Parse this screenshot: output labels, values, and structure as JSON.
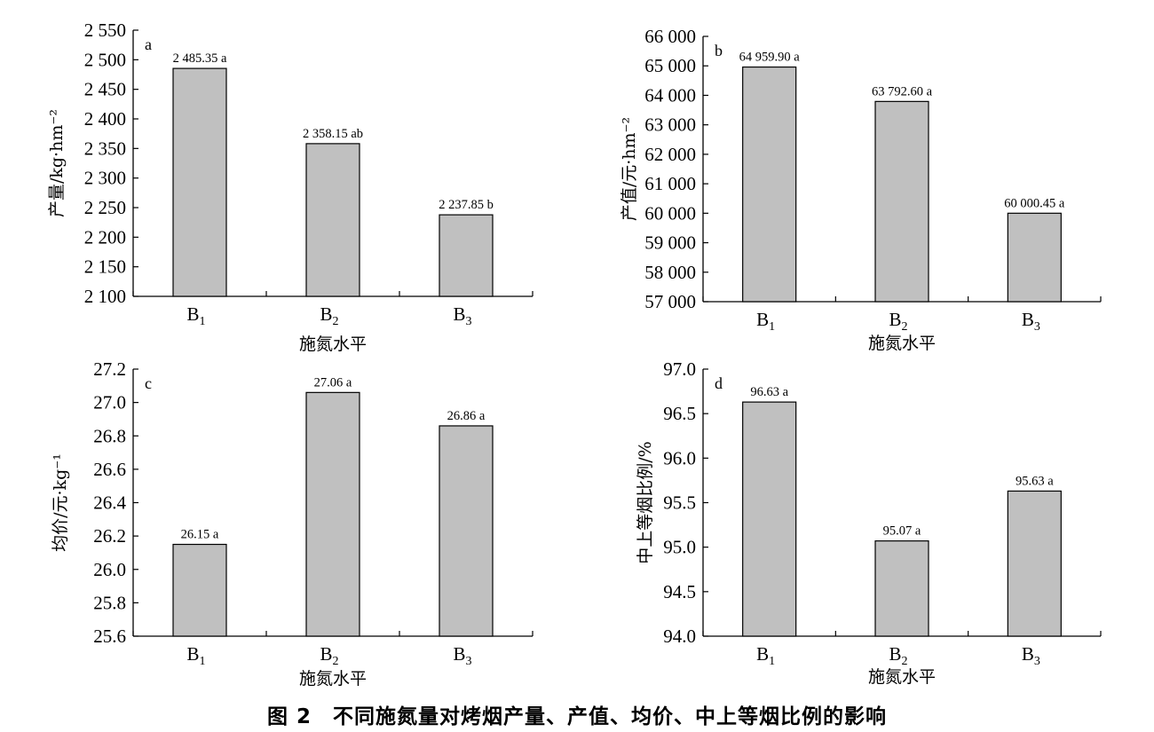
{
  "figure": {
    "caption": "图 2　不同施氮量对烤烟产量、产值、均价、中上等烟比例的影响"
  },
  "colors": {
    "bar_fill": "#c0c0c0",
    "bar_stroke": "#000000",
    "axis": "#000000"
  },
  "chart_data": [
    {
      "type": "bar",
      "panel_letter": "a",
      "categories": [
        "B1",
        "B2",
        "B3"
      ],
      "values": [
        2485.35,
        2358.15,
        2237.85
      ],
      "data_labels": [
        "2 485.35 a",
        "2 358.15 ab",
        "2 237.85 b"
      ],
      "xlabel": "施氮水平",
      "ylabel": "产量/kg·hm⁻²",
      "ylim": [
        2100,
        2550
      ],
      "yticks": [
        "2 100",
        "2 150",
        "2 200",
        "2 250",
        "2 300",
        "2 350",
        "2 400",
        "2 450",
        "2 500",
        "2 550"
      ],
      "grid": false
    },
    {
      "type": "bar",
      "panel_letter": "b",
      "categories": [
        "B1",
        "B2",
        "B3"
      ],
      "values": [
        64959.9,
        63792.6,
        60000.45
      ],
      "data_labels": [
        "64 959.90 a",
        "63 792.60 a",
        "60 000.45 a"
      ],
      "xlabel": "施氮水平",
      "ylabel": "产值/元·hm⁻²",
      "ylim": [
        57000,
        66000
      ],
      "yticks": [
        "57 000",
        "58 000",
        "59 000",
        "60 000",
        "61 000",
        "62 000",
        "63 000",
        "64 000",
        "65 000",
        "66 000"
      ],
      "grid": false
    },
    {
      "type": "bar",
      "panel_letter": "c",
      "categories": [
        "B1",
        "B2",
        "B3"
      ],
      "values": [
        26.15,
        27.06,
        26.86
      ],
      "data_labels": [
        "26.15 a",
        "27.06 a",
        "26.86 a"
      ],
      "xlabel": "施氮水平",
      "ylabel": "均价/元·kg⁻¹",
      "ylim": [
        25.6,
        27.2
      ],
      "yticks": [
        "25.6",
        "25.8",
        "26.0",
        "26.2",
        "26.4",
        "26.6",
        "26.8",
        "27.0",
        "27.2"
      ],
      "grid": false
    },
    {
      "type": "bar",
      "panel_letter": "d",
      "categories": [
        "B1",
        "B2",
        "B3"
      ],
      "values": [
        96.63,
        95.07,
        95.63
      ],
      "data_labels": [
        "96.63 a",
        "95.07 a",
        "95.63 a"
      ],
      "xlabel": "施氮水平",
      "ylabel": "中上等烟比例/%",
      "ylim": [
        94.0,
        97.0
      ],
      "yticks": [
        "94.0",
        "94.5",
        "95.0",
        "95.5",
        "96.0",
        "96.5",
        "97.0"
      ],
      "grid": false
    }
  ]
}
